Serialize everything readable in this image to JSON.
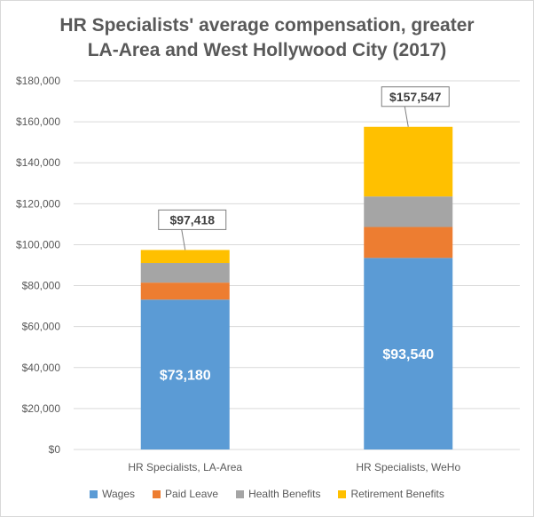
{
  "chart_data": {
    "type": "bar",
    "stacked": true,
    "title_lines": [
      "HR Specialists' average compensation, greater",
      "LA-Area and West Hollywood City (2017)"
    ],
    "categories": [
      "HR Specialists, LA-Area",
      "HR Specialists, WeHo"
    ],
    "series": [
      {
        "name": "Wages",
        "color": "#5b9bd5",
        "values": [
          73180,
          93540
        ]
      },
      {
        "name": "Paid Leave",
        "color": "#ed7d31",
        "values": [
          8300,
          15100
        ]
      },
      {
        "name": "Health Benefits",
        "color": "#a5a5a5",
        "values": [
          9600,
          14900
        ]
      },
      {
        "name": "Retirement Benefits",
        "color": "#ffc000",
        "values": [
          6338,
          34007
        ]
      }
    ],
    "totals": [
      97418,
      157547
    ],
    "total_labels": [
      "$97,418",
      "$157,547"
    ],
    "wage_labels": [
      "$73,180",
      "$93,540"
    ],
    "y_ticks": [
      {
        "value": 0,
        "label": "$0"
      },
      {
        "value": 20000,
        "label": "$20,000"
      },
      {
        "value": 40000,
        "label": "$40,000"
      },
      {
        "value": 60000,
        "label": "$60,000"
      },
      {
        "value": 80000,
        "label": "$80,000"
      },
      {
        "value": 100000,
        "label": "$100,000"
      },
      {
        "value": 120000,
        "label": "$120,000"
      },
      {
        "value": 140000,
        "label": "$140,000"
      },
      {
        "value": 160000,
        "label": "$160,000"
      },
      {
        "value": 180000,
        "label": "$180,000"
      }
    ],
    "ylim": [
      0,
      180000
    ],
    "grid": true,
    "legend_position": "bottom"
  }
}
